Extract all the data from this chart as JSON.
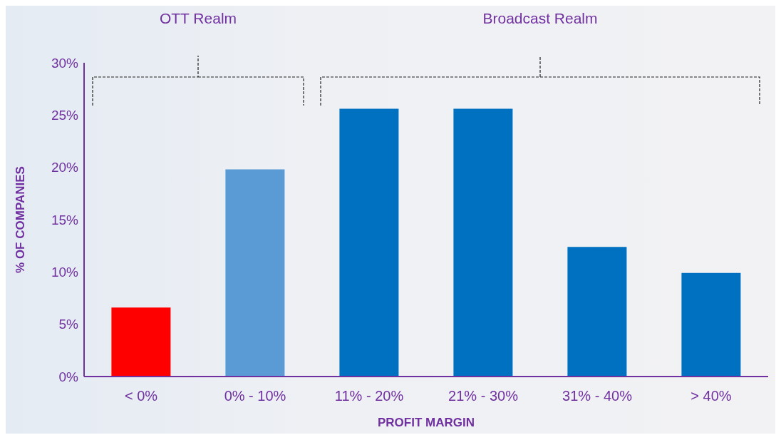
{
  "chart_data": {
    "type": "bar",
    "xlabel": "PROFIT MARGIN",
    "ylabel": "% OF COMPANIES",
    "categories": [
      "< 0%",
      "0% - 10%",
      "11% - 20%",
      "21% - 30%",
      "31% - 40%",
      "> 40%"
    ],
    "values": [
      6.6,
      19.8,
      25.6,
      25.6,
      12.4,
      9.9
    ],
    "colors": [
      "#ff0000",
      "#5b9bd5",
      "#0070c0",
      "#0070c0",
      "#0070c0",
      "#0070c0"
    ],
    "ylim": [
      0,
      30
    ],
    "yticks": [
      {
        "value": 0,
        "label": "0%"
      },
      {
        "value": 5,
        "label": "5%"
      },
      {
        "value": 10,
        "label": "10%"
      },
      {
        "value": 15,
        "label": "15%"
      },
      {
        "value": 20,
        "label": "20%"
      },
      {
        "value": 25,
        "label": "25%"
      },
      {
        "value": 30,
        "label": "30%"
      }
    ],
    "annotations": [
      "OTT Realm",
      "Broadcast Realm"
    ],
    "grid": false,
    "legend": false
  }
}
